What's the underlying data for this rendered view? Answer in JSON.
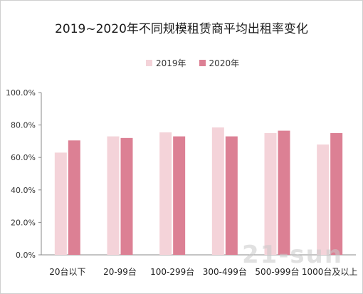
{
  "chart_data": {
    "type": "bar",
    "title": "2019~2020年不同规模租赁商平均出租率变化",
    "categories": [
      "20台以下",
      "20-99台",
      "100-299台",
      "300-499台",
      "500-999台",
      "1000台及以上"
    ],
    "series": [
      {
        "name": "2019年",
        "values": [
          63,
          73,
          75.5,
          78.5,
          75,
          68
        ],
        "color": "#f4d3d9"
      },
      {
        "name": "2020年",
        "values": [
          70.5,
          72,
          73,
          73,
          76.5,
          75
        ],
        "color": "#dc8094"
      }
    ],
    "yticks": [
      "0.0%",
      "20.0%",
      "40.0%",
      "60.0%",
      "80.0%",
      "100.0%"
    ],
    "ylim": [
      0,
      100
    ],
    "grid": false,
    "legend_position": "top"
  },
  "watermark": "21-sun"
}
